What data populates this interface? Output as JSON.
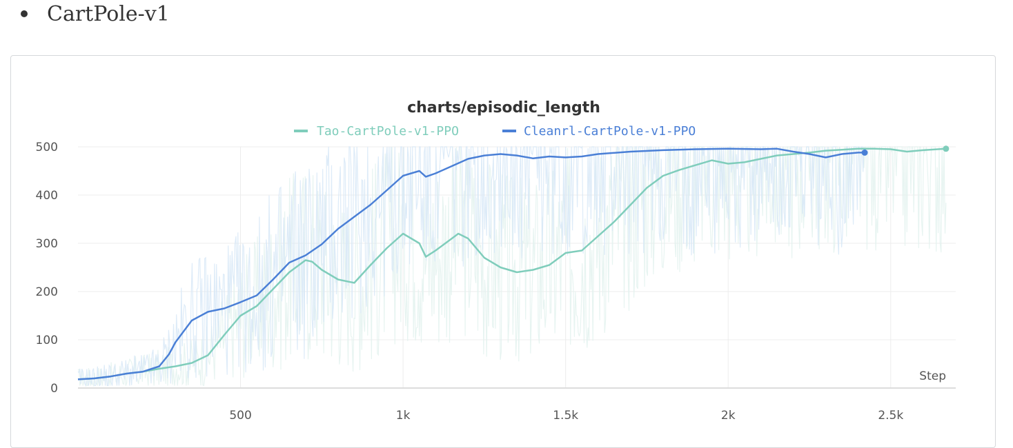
{
  "section": {
    "bullet_label": "CartPole-v1"
  },
  "colors": {
    "tao": "#7fcdbb",
    "cleanrl": "#4a7fd6",
    "raw_fill": "#d7e8f7",
    "grid": "#ececec"
  },
  "chart_data": {
    "type": "line",
    "title": "charts/episodic_length",
    "xlabel": "Step",
    "ylabel": "",
    "xlim": [
      0,
      2700
    ],
    "ylim": [
      0,
      500
    ],
    "x_ticks": [
      500,
      1000,
      1500,
      2000,
      2500
    ],
    "x_tick_labels": [
      "500",
      "1k",
      "1.5k",
      "2k",
      "2.5k"
    ],
    "y_ticks": [
      0,
      100,
      200,
      300,
      400,
      500
    ],
    "y_tick_labels": [
      "0",
      "100",
      "200",
      "300",
      "400",
      "500"
    ],
    "legend_position": "top",
    "grid": true,
    "series": [
      {
        "name": "Tao-CartPole-v1-PPO",
        "color": "#7fcdbb",
        "x": [
          0,
          50,
          100,
          150,
          200,
          250,
          300,
          350,
          400,
          450,
          500,
          550,
          600,
          650,
          700,
          720,
          750,
          800,
          850,
          900,
          950,
          1000,
          1050,
          1070,
          1100,
          1150,
          1170,
          1200,
          1250,
          1300,
          1350,
          1400,
          1450,
          1500,
          1550,
          1600,
          1650,
          1700,
          1750,
          1800,
          1850,
          1900,
          1950,
          2000,
          2050,
          2100,
          2150,
          2200,
          2250,
          2300,
          2350,
          2400,
          2450,
          2500,
          2550,
          2600,
          2670
        ],
        "y": [
          18,
          20,
          24,
          30,
          34,
          40,
          45,
          52,
          68,
          110,
          150,
          170,
          205,
          240,
          265,
          262,
          245,
          225,
          218,
          255,
          290,
          320,
          300,
          272,
          285,
          310,
          320,
          310,
          270,
          250,
          240,
          245,
          255,
          280,
          285,
          315,
          345,
          380,
          415,
          440,
          452,
          462,
          472,
          465,
          468,
          475,
          482,
          485,
          488,
          492,
          494,
          496,
          496,
          495,
          490,
          493,
          496
        ]
      },
      {
        "name": "Cleanrl-CartPole-v1-PPO",
        "color": "#4a7fd6",
        "x": [
          0,
          50,
          100,
          150,
          200,
          250,
          280,
          300,
          350,
          400,
          450,
          500,
          550,
          600,
          650,
          700,
          750,
          800,
          850,
          900,
          950,
          1000,
          1050,
          1070,
          1100,
          1150,
          1200,
          1250,
          1300,
          1350,
          1400,
          1450,
          1500,
          1550,
          1600,
          1700,
          1800,
          1900,
          2000,
          2100,
          2150,
          2200,
          2250,
          2300,
          2350,
          2400,
          2420
        ],
        "y": [
          18,
          20,
          24,
          30,
          34,
          45,
          70,
          95,
          140,
          158,
          165,
          178,
          192,
          225,
          260,
          275,
          298,
          330,
          355,
          380,
          410,
          440,
          450,
          438,
          445,
          460,
          475,
          482,
          485,
          482,
          476,
          480,
          478,
          480,
          485,
          490,
          493,
          495,
          496,
          495,
          496,
          490,
          485,
          478,
          485,
          488,
          488
        ]
      }
    ]
  }
}
